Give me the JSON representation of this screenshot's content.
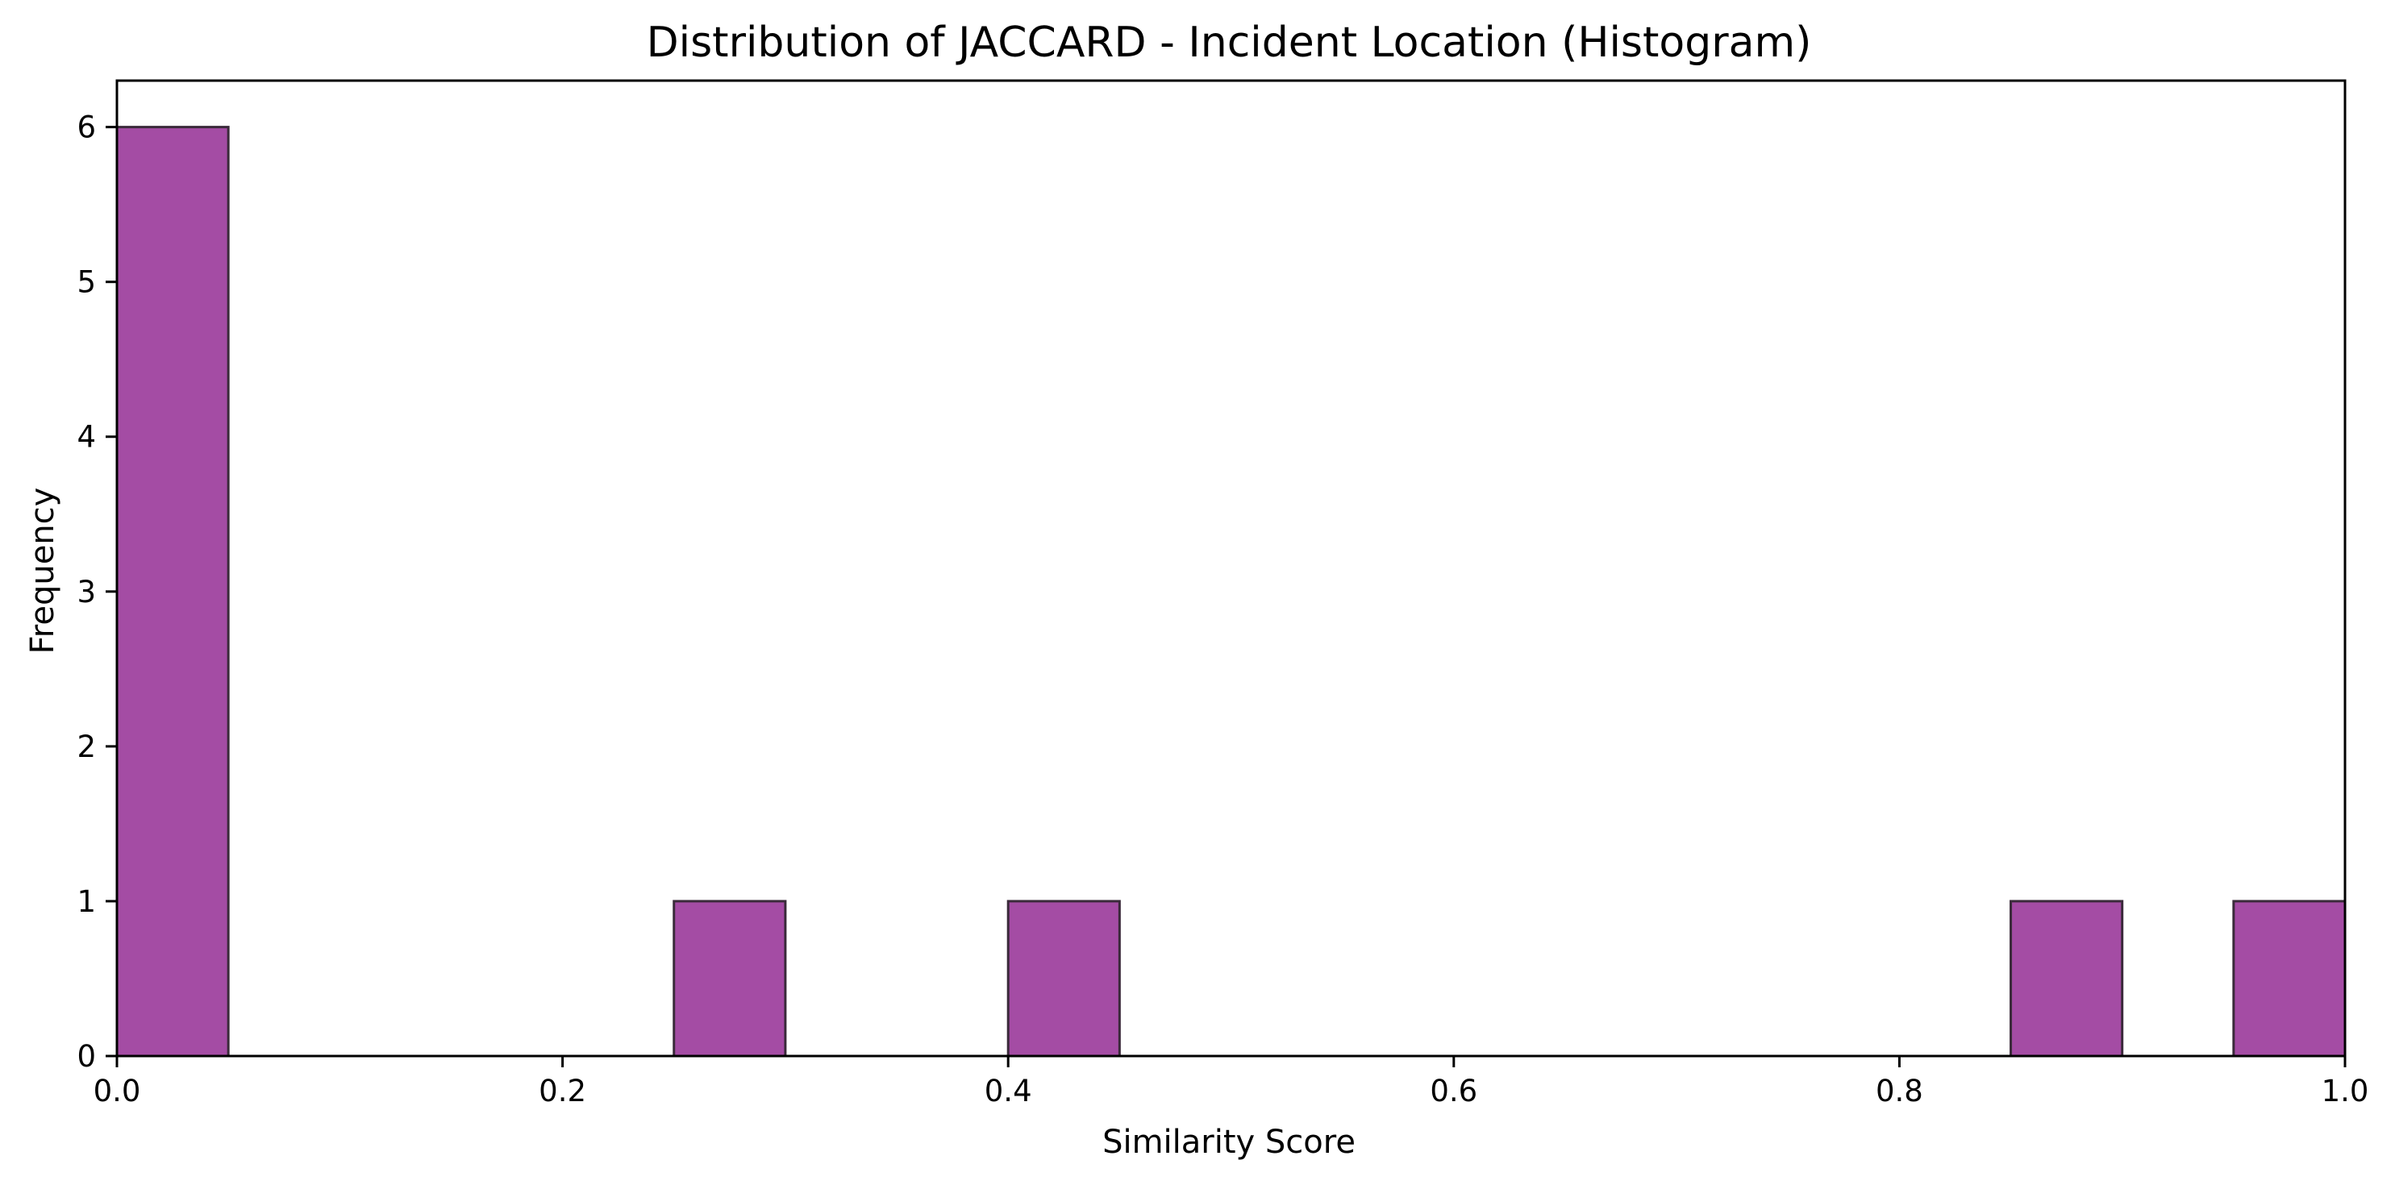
{
  "chart_data": {
    "type": "bar",
    "title": "Distribution of JACCARD - Incident Location (Histogram)",
    "xlabel": "Similarity Score",
    "ylabel": "Frequency",
    "xlim": [
      0.0,
      1.0
    ],
    "ylim": [
      0,
      6.3
    ],
    "xticks": [
      "0.0",
      "0.2",
      "0.4",
      "0.6",
      "0.8",
      "1.0"
    ],
    "yticks": [
      "0",
      "1",
      "2",
      "3",
      "4",
      "5",
      "6"
    ],
    "bin_width": 0.05,
    "bins": [
      {
        "x0": 0.0,
        "x1": 0.05,
        "count": 6
      },
      {
        "x0": 0.25,
        "x1": 0.3,
        "count": 1
      },
      {
        "x0": 0.4,
        "x1": 0.45,
        "count": 1
      },
      {
        "x0": 0.85,
        "x1": 0.9,
        "count": 1
      },
      {
        "x0": 0.95,
        "x1": 1.0,
        "count": 1
      }
    ],
    "bar_color": "#a44ca4",
    "edge_color": "#3a2a3a",
    "grid": false,
    "legend": "none"
  }
}
